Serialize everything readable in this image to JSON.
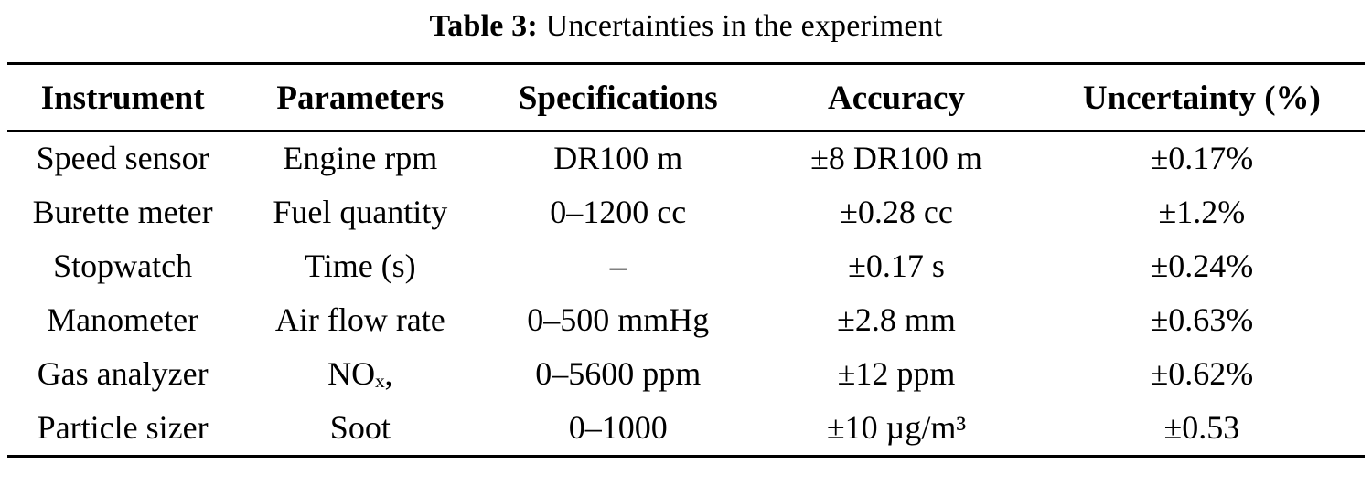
{
  "caption": {
    "label": "Table 3:",
    "text": "Uncertainties in the experiment"
  },
  "table": {
    "headers": [
      "Instrument",
      "Parameters",
      "Specifications",
      "Accuracy",
      "Uncertainty (%)"
    ],
    "rows": [
      [
        "Speed sensor",
        "Engine rpm",
        "DR100 m",
        "±8 DR100 m",
        "±0.17%"
      ],
      [
        "Burette meter",
        "Fuel quantity",
        "0–1200 cc",
        "±0.28 cc",
        "±1.2%"
      ],
      [
        "Stopwatch",
        "Time (s)",
        "–",
        "±0.17 s",
        "±0.24%"
      ],
      [
        "Manometer",
        "Air flow rate",
        "0–500 mmHg",
        "±2.8 mm",
        "±0.63%"
      ],
      [
        "Gas analyzer",
        "NOₓ,",
        "0–5600 ppm",
        "±12 ppm",
        "±0.62%"
      ],
      [
        "Particle sizer",
        "Soot",
        "0–1000",
        "±10 µg/m³",
        "±0.53"
      ]
    ]
  }
}
